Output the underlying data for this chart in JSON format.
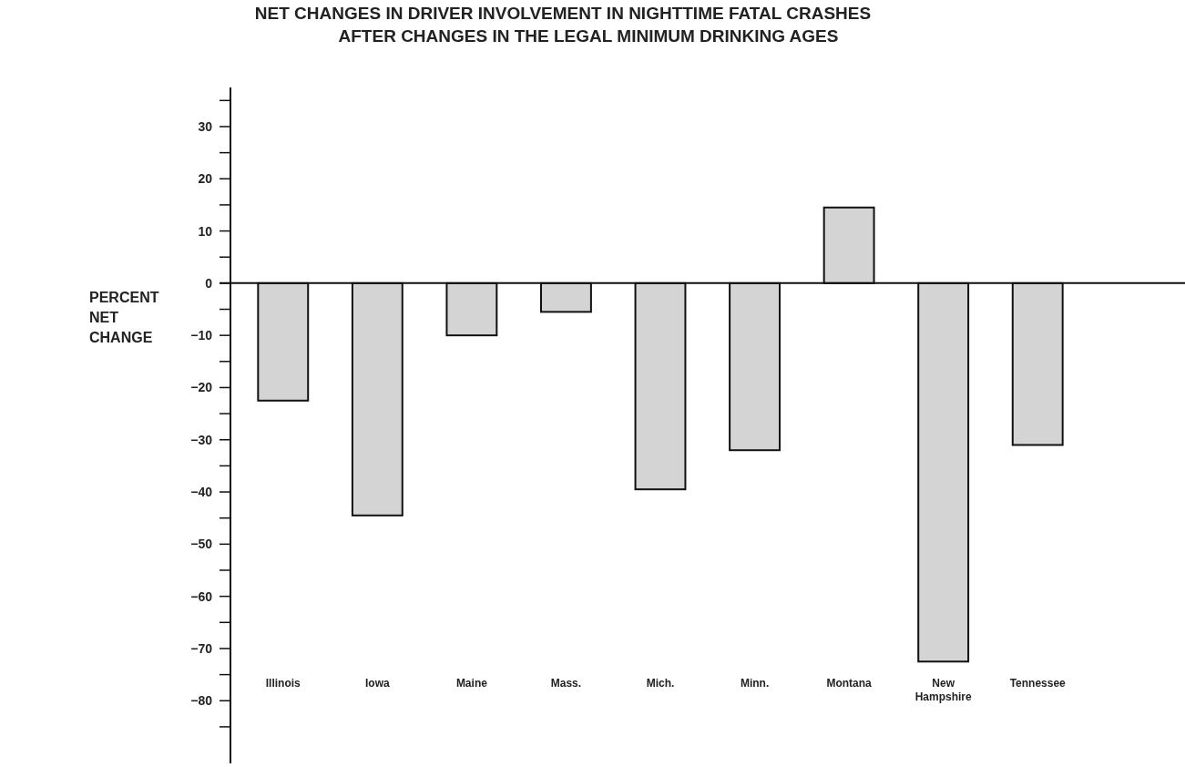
{
  "chart_data": {
    "type": "bar",
    "title": "NET CHANGES IN DRIVER INVOLVEMENT IN NIGHTTIME FATAL CRASHES\nAFTER CHANGES IN THE LEGAL MINIMUM DRINKING AGES",
    "ylabel": "PERCENT\nNET\nCHANGE",
    "categories": [
      "Illinois",
      "Iowa",
      "Maine",
      "Mass.",
      "Mich.",
      "Minn.",
      "Montana",
      "New Hampshire",
      "Tennessee"
    ],
    "values": [
      -22.5,
      -44.5,
      -10,
      -5.5,
      -39.5,
      -32,
      14.5,
      -72.5,
      -31
    ],
    "color": "#d4d4d4",
    "ylim": [
      -92,
      37.5
    ],
    "yticks": [
      {
        "value": 35,
        "label": null
      },
      30,
      {
        "value": 25,
        "label": null
      },
      20,
      {
        "value": 15,
        "label": null
      },
      10,
      {
        "value": 5,
        "label": null
      },
      0,
      {
        "value": -5,
        "label": null
      },
      {
        "value": -10,
        "label": "−10"
      },
      {
        "value": -15,
        "label": null
      },
      {
        "value": -20,
        "label": "−20"
      },
      {
        "value": -25,
        "label": null
      },
      {
        "value": -30,
        "label": "−30"
      },
      {
        "value": -35,
        "label": null
      },
      {
        "value": -40,
        "label": "−40"
      },
      {
        "value": -45,
        "label": null
      },
      {
        "value": -50,
        "label": "−50"
      },
      {
        "value": -55,
        "label": null
      },
      {
        "value": -60,
        "label": "−60"
      },
      {
        "value": -65,
        "label": null
      },
      {
        "value": -70,
        "label": "−70"
      },
      {
        "value": -75,
        "label": null
      },
      {
        "value": -80,
        "label": "−80"
      },
      {
        "value": -85,
        "label": null
      }
    ],
    "ref_lines": [
      {
        "axis": "y",
        "value": 0
      }
    ]
  }
}
